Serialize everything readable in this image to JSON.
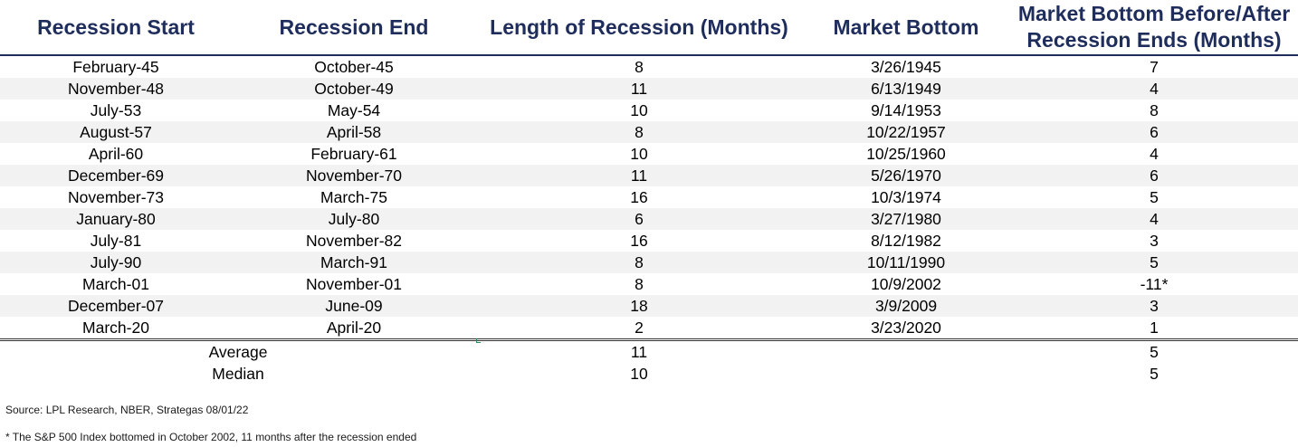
{
  "table": {
    "headers": [
      "Recession Start",
      "Recession End",
      "Length of Recession (Months)",
      "Market Bottom",
      "Market Bottom Before/After Recession Ends (Months)"
    ],
    "rows": [
      [
        "February-45",
        "October-45",
        "8",
        "3/26/1945",
        "7"
      ],
      [
        "November-48",
        "October-49",
        "11",
        "6/13/1949",
        "4"
      ],
      [
        "July-53",
        "May-54",
        "10",
        "9/14/1953",
        "8"
      ],
      [
        "August-57",
        "April-58",
        "8",
        "10/22/1957",
        "6"
      ],
      [
        "April-60",
        "February-61",
        "10",
        "10/25/1960",
        "4"
      ],
      [
        "December-69",
        "November-70",
        "11",
        "5/26/1970",
        "6"
      ],
      [
        "November-73",
        "March-75",
        "16",
        "10/3/1974",
        "5"
      ],
      [
        "January-80",
        "July-80",
        "6",
        "3/27/1980",
        "4"
      ],
      [
        "July-81",
        "November-82",
        "16",
        "8/12/1982",
        "3"
      ],
      [
        "July-90",
        "March-91",
        "8",
        "10/11/1990",
        "5"
      ],
      [
        "March-01",
        "November-01",
        "8",
        "10/9/2002",
        "-11*"
      ],
      [
        "December-07",
        "June-09",
        "18",
        "3/9/2009",
        "3"
      ],
      [
        "March-20",
        "April-20",
        "2",
        "3/23/2020",
        "1"
      ]
    ],
    "summary": [
      {
        "label": "Average",
        "length": "11",
        "before_after": "5"
      },
      {
        "label": "Median",
        "length": "10",
        "before_after": "5"
      }
    ]
  },
  "notes": {
    "source": "Source: LPL Research, NBER, Strategas 08/01/22",
    "footnote": "* The S&P 500 Index bottomed in October 2002, 11 months after the recession ended"
  },
  "colors": {
    "header_text": "#1f2d5c",
    "row_shade": "#f2f2f2"
  }
}
